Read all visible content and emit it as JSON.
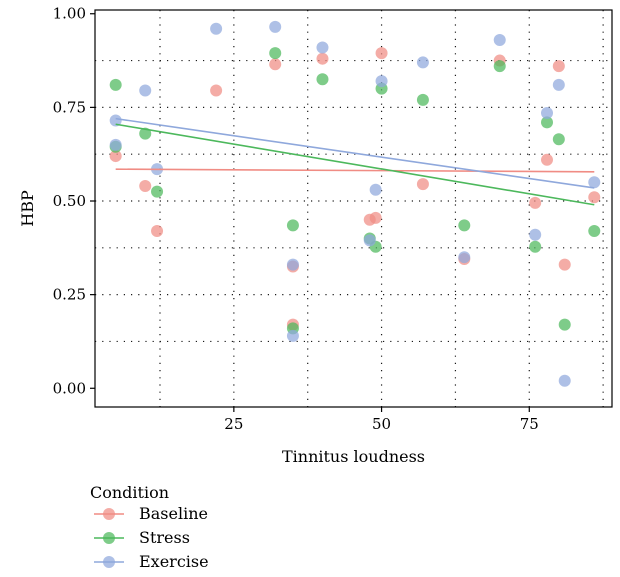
{
  "chart_data": {
    "type": "scatter",
    "xlabel": "Tinnitus loudness",
    "ylabel": "HBP",
    "xlim": [
      1.5,
      89
    ],
    "ylim": [
      -0.05,
      1.01
    ],
    "x_ticks": [
      25,
      50,
      75
    ],
    "x_tick_labels": [
      "25",
      "50",
      "75"
    ],
    "y_ticks": [
      0.0,
      0.25,
      0.5,
      0.75,
      1.0
    ],
    "y_tick_labels": [
      "0.00",
      "0.25",
      "0.50",
      "0.75",
      "1.00"
    ],
    "minor_gridlines": {
      "x": [
        12.5,
        37.5,
        62.5,
        87.5
      ],
      "y": [
        0.125,
        0.375,
        0.625,
        0.875
      ],
      "style": "dotted"
    },
    "major_gridlines": {
      "x": [
        25,
        50,
        75
      ],
      "y": [
        0.25,
        0.5,
        0.75
      ],
      "style": "dotted"
    },
    "legend": {
      "title": "Condition",
      "position": "bottom-left",
      "entries": [
        "Baseline",
        "Stress",
        "Exercise"
      ]
    },
    "series": [
      {
        "name": "Baseline",
        "color": "#F08C84",
        "points": [
          [
            5,
            0.62
          ],
          [
            10,
            0.54
          ],
          [
            12,
            0.42
          ],
          [
            22,
            0.795
          ],
          [
            32,
            0.865
          ],
          [
            35,
            0.17
          ],
          [
            35,
            0.325
          ],
          [
            40,
            0.88
          ],
          [
            48,
            0.45
          ],
          [
            49,
            0.455
          ],
          [
            50,
            0.895
          ],
          [
            57,
            0.545
          ],
          [
            64,
            0.345
          ],
          [
            70,
            0.875
          ],
          [
            76,
            0.495
          ],
          [
            78,
            0.61
          ],
          [
            80,
            0.86
          ],
          [
            81,
            0.33
          ],
          [
            86,
            0.51
          ]
        ],
        "trend": [
          [
            5,
            0.585
          ],
          [
            86,
            0.578
          ]
        ]
      },
      {
        "name": "Stress",
        "color": "#4CB85C",
        "points": [
          [
            5,
            0.81
          ],
          [
            5,
            0.645
          ],
          [
            10,
            0.68
          ],
          [
            12,
            0.525
          ],
          [
            32,
            0.895
          ],
          [
            35,
            0.435
          ],
          [
            35,
            0.16
          ],
          [
            40,
            0.825
          ],
          [
            48,
            0.4
          ],
          [
            49,
            0.378
          ],
          [
            50,
            0.8
          ],
          [
            57,
            0.77
          ],
          [
            64,
            0.435
          ],
          [
            70,
            0.86
          ],
          [
            76,
            0.378
          ],
          [
            78,
            0.71
          ],
          [
            80,
            0.665
          ],
          [
            81,
            0.17
          ],
          [
            86,
            0.42
          ]
        ],
        "trend": [
          [
            5,
            0.705
          ],
          [
            86,
            0.49
          ]
        ]
      },
      {
        "name": "Exercise",
        "color": "#8FA8DC",
        "points": [
          [
            5,
            0.715
          ],
          [
            5,
            0.65
          ],
          [
            10,
            0.795
          ],
          [
            12,
            0.585
          ],
          [
            22,
            0.96
          ],
          [
            32,
            0.965
          ],
          [
            35,
            0.33
          ],
          [
            35,
            0.14
          ],
          [
            40,
            0.91
          ],
          [
            48,
            0.395
          ],
          [
            49,
            0.53
          ],
          [
            50,
            0.82
          ],
          [
            57,
            0.87
          ],
          [
            64,
            0.35
          ],
          [
            70,
            0.93
          ],
          [
            76,
            0.41
          ],
          [
            78,
            0.735
          ],
          [
            80,
            0.81
          ],
          [
            81,
            0.02
          ],
          [
            86,
            0.55
          ]
        ],
        "trend": [
          [
            5,
            0.72
          ],
          [
            86,
            0.535
          ]
        ]
      }
    ]
  }
}
